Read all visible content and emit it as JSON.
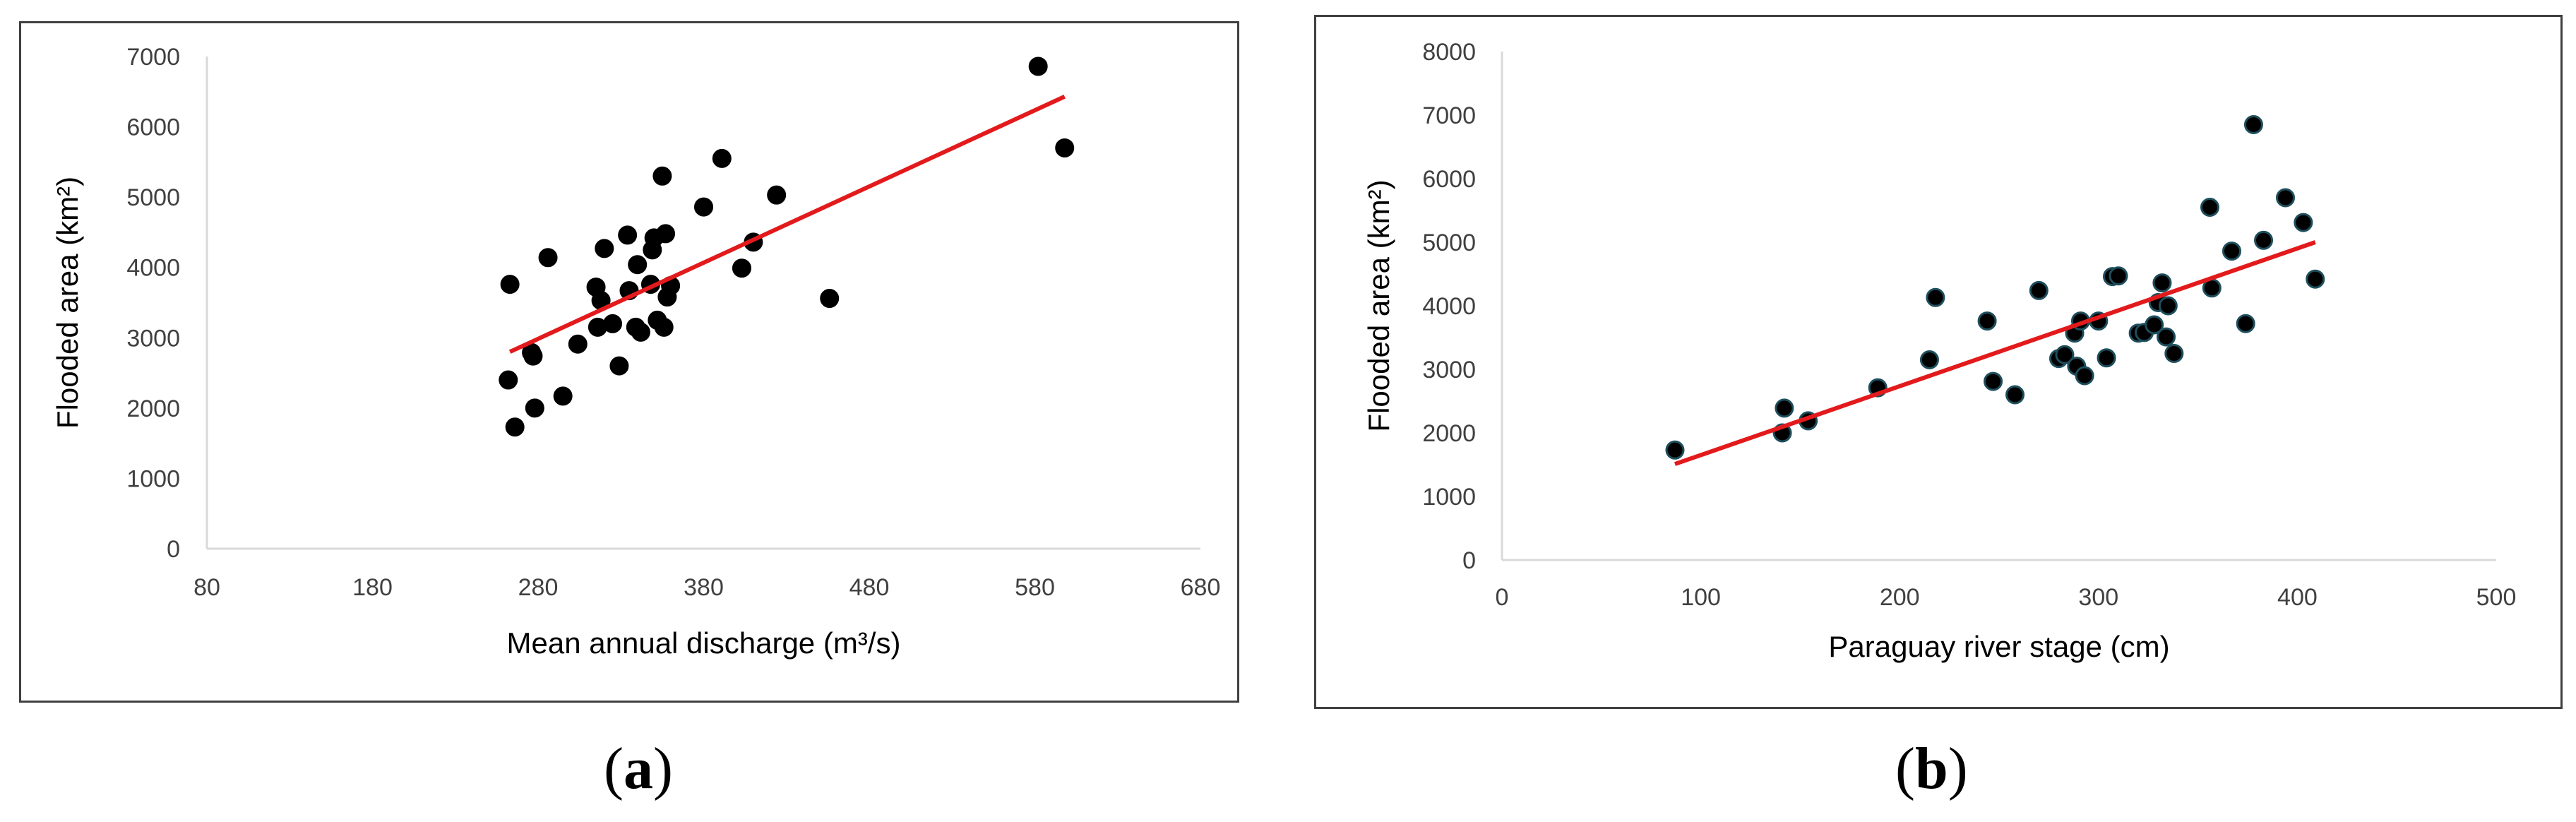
{
  "chart_data": [
    {
      "panel": "(a)",
      "panel_letter": "a",
      "type": "scatter",
      "title": "",
      "xlabel": "Mean annual discharge (m³/s)",
      "ylabel": "Flooded area (km²)",
      "xlim": [
        80,
        680
      ],
      "ylim": [
        0,
        7000
      ],
      "xticks": [
        80,
        180,
        280,
        380,
        480,
        580,
        680
      ],
      "yticks": [
        0,
        1000,
        2000,
        3000,
        4000,
        5000,
        6000,
        7000
      ],
      "grid": false,
      "legend": "none",
      "marker_color": "#000000",
      "marker_stroke": "#000000",
      "trend_color": "#e31a1c",
      "points": [
        [
          263,
          3760
        ],
        [
          262,
          2400
        ],
        [
          266,
          1730
        ],
        [
          276,
          2790
        ],
        [
          277,
          2740
        ],
        [
          278,
          2000
        ],
        [
          286,
          4140
        ],
        [
          295,
          2170
        ],
        [
          304,
          2910
        ],
        [
          315,
          3720
        ],
        [
          316,
          3150
        ],
        [
          318,
          3530
        ],
        [
          320,
          4270
        ],
        [
          325,
          3200
        ],
        [
          329,
          2600
        ],
        [
          334,
          4460
        ],
        [
          335,
          3670
        ],
        [
          339,
          3150
        ],
        [
          340,
          4040
        ],
        [
          342,
          3080
        ],
        [
          348,
          3760
        ],
        [
          349,
          4250
        ],
        [
          350,
          4420
        ],
        [
          352,
          3250
        ],
        [
          355,
          5300
        ],
        [
          356,
          3150
        ],
        [
          357,
          4480
        ],
        [
          358,
          3580
        ],
        [
          360,
          3740
        ],
        [
          380,
          4860
        ],
        [
          391,
          5550
        ],
        [
          403,
          3990
        ],
        [
          410,
          4360
        ],
        [
          424,
          5030
        ],
        [
          456,
          3560
        ],
        [
          582,
          6860
        ],
        [
          598,
          5700
        ]
      ],
      "trendline": [
        [
          263,
          2800
        ],
        [
          598,
          6430
        ]
      ]
    },
    {
      "panel": "(b)",
      "panel_letter": "b",
      "type": "scatter",
      "title": "",
      "xlabel": "Paraguay river stage (cm)",
      "ylabel": "Flooded area (km²)",
      "xlim": [
        0,
        500
      ],
      "ylim": [
        0,
        8000
      ],
      "xticks": [
        0,
        100,
        200,
        300,
        400,
        500
      ],
      "yticks": [
        0,
        1000,
        2000,
        3000,
        4000,
        5000,
        6000,
        7000,
        8000
      ],
      "grid": false,
      "legend": "none",
      "marker_color": "#000000",
      "marker_stroke": "#1e4e5c",
      "trend_color": "#e31a1c",
      "points": [
        [
          87,
          1730
        ],
        [
          141,
          2000
        ],
        [
          142,
          2390
        ],
        [
          154,
          2190
        ],
        [
          189,
          2710
        ],
        [
          215,
          3150
        ],
        [
          218,
          4130
        ],
        [
          244,
          3760
        ],
        [
          247,
          2810
        ],
        [
          258,
          2600
        ],
        [
          270,
          4240
        ],
        [
          280,
          3170
        ],
        [
          283,
          3230
        ],
        [
          288,
          3570
        ],
        [
          289,
          3050
        ],
        [
          291,
          3760
        ],
        [
          293,
          2900
        ],
        [
          300,
          3760
        ],
        [
          304,
          3180
        ],
        [
          307,
          4460
        ],
        [
          310,
          4470
        ],
        [
          320,
          3570
        ],
        [
          323,
          3580
        ],
        [
          328,
          3700
        ],
        [
          330,
          4050
        ],
        [
          332,
          4360
        ],
        [
          334,
          3510
        ],
        [
          335,
          4000
        ],
        [
          338,
          3250
        ],
        [
          356,
          5550
        ],
        [
          357,
          4280
        ],
        [
          367,
          4860
        ],
        [
          374,
          3720
        ],
        [
          378,
          6850
        ],
        [
          383,
          5030
        ],
        [
          394,
          5700
        ],
        [
          403,
          5310
        ],
        [
          409,
          4420
        ]
      ],
      "trendline": [
        [
          87,
          1510
        ],
        [
          409,
          5000
        ]
      ]
    }
  ]
}
